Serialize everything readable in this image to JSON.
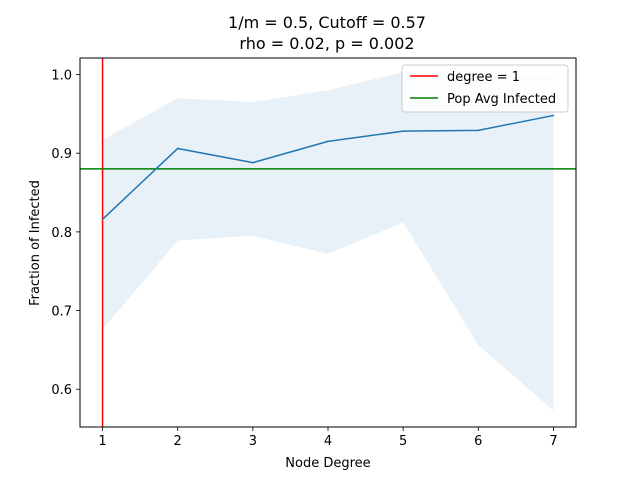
{
  "chart_data": {
    "type": "line",
    "title_line1": "1/m = 0.5, Cutoff = 0.57",
    "title_line2": "rho = 0.02, p = 0.002",
    "xlabel": "Node Degree",
    "ylabel": "Fraction of Infected",
    "xlim": [
      0.7,
      7.3
    ],
    "ylim": [
      0.552,
      1.021
    ],
    "xticks": [
      1,
      2,
      3,
      4,
      5,
      6,
      7
    ],
    "yticks": [
      0.6,
      0.7,
      0.8,
      0.9,
      1.0
    ],
    "ytick_labels": [
      "0.6",
      "0.7",
      "0.8",
      "0.9",
      "1.0"
    ],
    "grid": false,
    "legend_position": "top-right",
    "series": [
      {
        "x": [
          1,
          2,
          3,
          4,
          5,
          6,
          7
        ],
        "values": [
          0.816,
          0.906,
          0.888,
          0.915,
          0.928,
          0.929,
          0.948
        ],
        "color": "#1f77b4"
      }
    ],
    "band": {
      "x": [
        1,
        2,
        3,
        4,
        5,
        6,
        7
      ],
      "upper": [
        0.917,
        0.97,
        0.965,
        0.98,
        1.003,
        0.998,
        0.998
      ],
      "lower": [
        0.676,
        0.789,
        0.795,
        0.772,
        0.812,
        0.656,
        0.573
      ],
      "color": "#1f77b4",
      "opacity": 0.1
    },
    "reference_lines": [
      {
        "orientation": "vertical",
        "value": 1,
        "label": "degree = 1",
        "color": "#ff0000"
      },
      {
        "orientation": "horizontal",
        "value": 0.88,
        "label": "Pop Avg Infected",
        "color": "#008000"
      }
    ]
  }
}
